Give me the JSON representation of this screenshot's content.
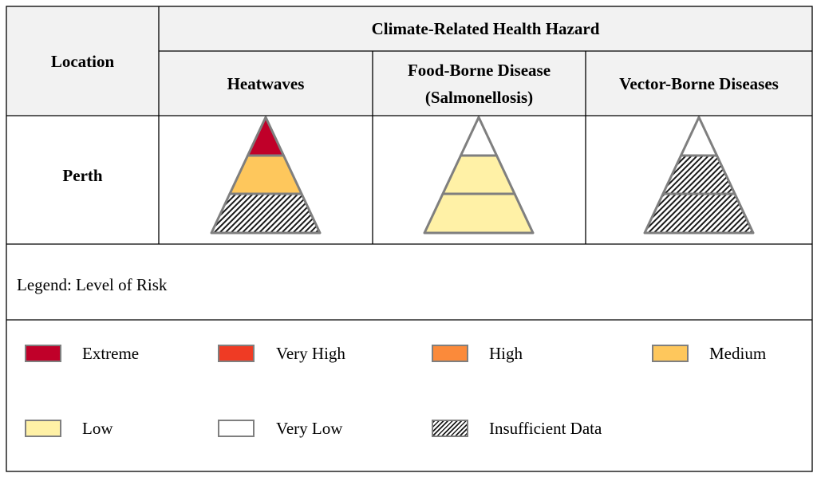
{
  "header": {
    "location_label": "Location",
    "hazard_group_label": "Climate-Related Health Hazard",
    "columns": [
      {
        "label": "Heatwaves"
      },
      {
        "label_line1": "Food-Borne Disease",
        "label_line2": "(Salmonellosis)"
      },
      {
        "label": "Vector-Borne Diseases"
      }
    ]
  },
  "row": {
    "location": "Perth",
    "pyramids": [
      {
        "hazard": "Heatwaves",
        "top": "Extreme",
        "middle": "Medium",
        "bottom": "Insufficient Data"
      },
      {
        "hazard": "Food-Borne Disease (Salmonellosis)",
        "top": "Very Low",
        "middle": "Low",
        "bottom": "Low"
      },
      {
        "hazard": "Vector-Borne Diseases",
        "top": "Very Low",
        "middle": "Insufficient Data",
        "bottom": "Insufficient Data"
      }
    ]
  },
  "legend": {
    "title": "Legend: Level of Risk",
    "items": [
      {
        "label": "Extreme",
        "color": "#c00029"
      },
      {
        "label": "Very High",
        "color": "#ef3b24"
      },
      {
        "label": "High",
        "color": "#fb8a3a"
      },
      {
        "label": "Medium",
        "color": "#fec75c"
      },
      {
        "label": "Low",
        "color": "#fff1a6"
      },
      {
        "label": "Very Low",
        "color": "#ffffff"
      },
      {
        "label": "Insufficient Data",
        "color": "hatched"
      }
    ]
  },
  "colors": {
    "grid": "#000000",
    "outline": "#7f7f7f",
    "header_bg": "#f2f2f2"
  }
}
